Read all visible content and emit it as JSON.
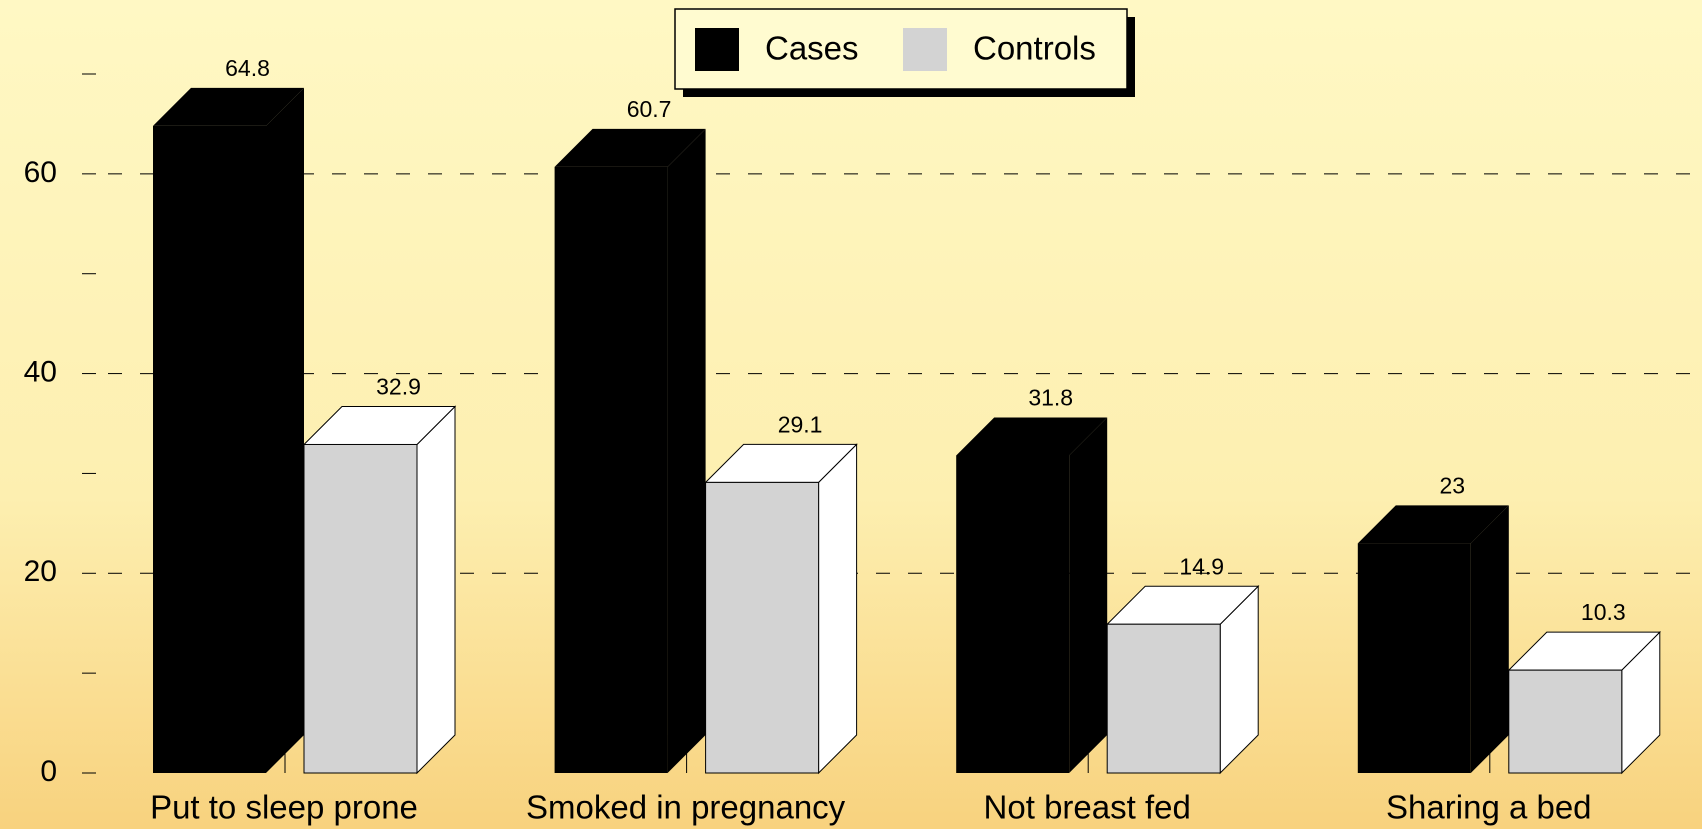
{
  "chart_data": {
    "type": "bar3d",
    "categories": [
      "Put to sleep prone",
      "Smoked in pregnancy",
      "Not breast fed",
      "Sharing a bed"
    ],
    "series": [
      {
        "name": "Cases",
        "color": "#000000",
        "values": [
          64.8,
          60.7,
          31.8,
          23
        ]
      },
      {
        "name": "Controls",
        "color": "#d3d3d3",
        "values": [
          32.9,
          29.1,
          14.9,
          10.3
        ]
      }
    ],
    "ylim": [
      0,
      70
    ],
    "yticks": [
      0,
      20,
      40,
      60
    ],
    "yminorticks": [
      10,
      30,
      50,
      70
    ],
    "grid": true,
    "legend": "top"
  }
}
